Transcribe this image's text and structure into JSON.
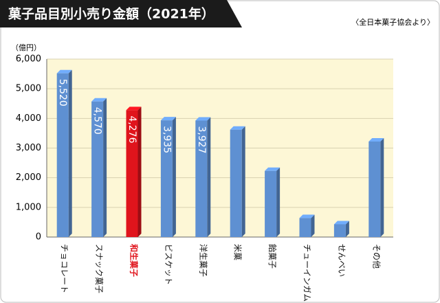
{
  "chart_data": {
    "type": "bar",
    "title": "菓子品目別小売り金額（2021年）",
    "source": "〈全日本菓子協会より〉",
    "y_label": "（億円）",
    "categories": [
      "チョコレート",
      "スナック菓子",
      "和生菓子",
      "ビスケット",
      "洋生菓子",
      "米菓",
      "飴菓子",
      "チューインガム",
      "せんべい",
      "その他"
    ],
    "values": [
      5520,
      4570,
      4276,
      3935,
      3927,
      3620,
      2230,
      640,
      430,
      3220
    ],
    "value_labels": [
      "5,520",
      "4,570",
      "4,276",
      "3,935",
      "3,927",
      null,
      null,
      null,
      null,
      null
    ],
    "colors": [
      "#5e90d2",
      "#5e90d2",
      "#e0141c",
      "#5e90d2",
      "#5e90d2",
      "#5e90d2",
      "#5e90d2",
      "#5e90d2",
      "#5e90d2",
      "#5e90d2"
    ],
    "label_colors": [
      "#111111",
      "#111111",
      "#e0141c",
      "#111111",
      "#111111",
      "#111111",
      "#111111",
      "#111111",
      "#111111",
      "#111111"
    ],
    "ylim": [
      0,
      6000
    ],
    "yticks": [
      0,
      {
        "value": 1000,
        "label": "1,000"
      },
      {
        "value": 2000,
        "label": "2,000"
      },
      {
        "value": 3000,
        "label": "3,000"
      },
      {
        "value": 4000,
        "label": "4,000"
      },
      {
        "value": 5000,
        "label": "5,000"
      },
      {
        "value": 6000,
        "label": "6,000"
      }
    ],
    "grid": true
  }
}
